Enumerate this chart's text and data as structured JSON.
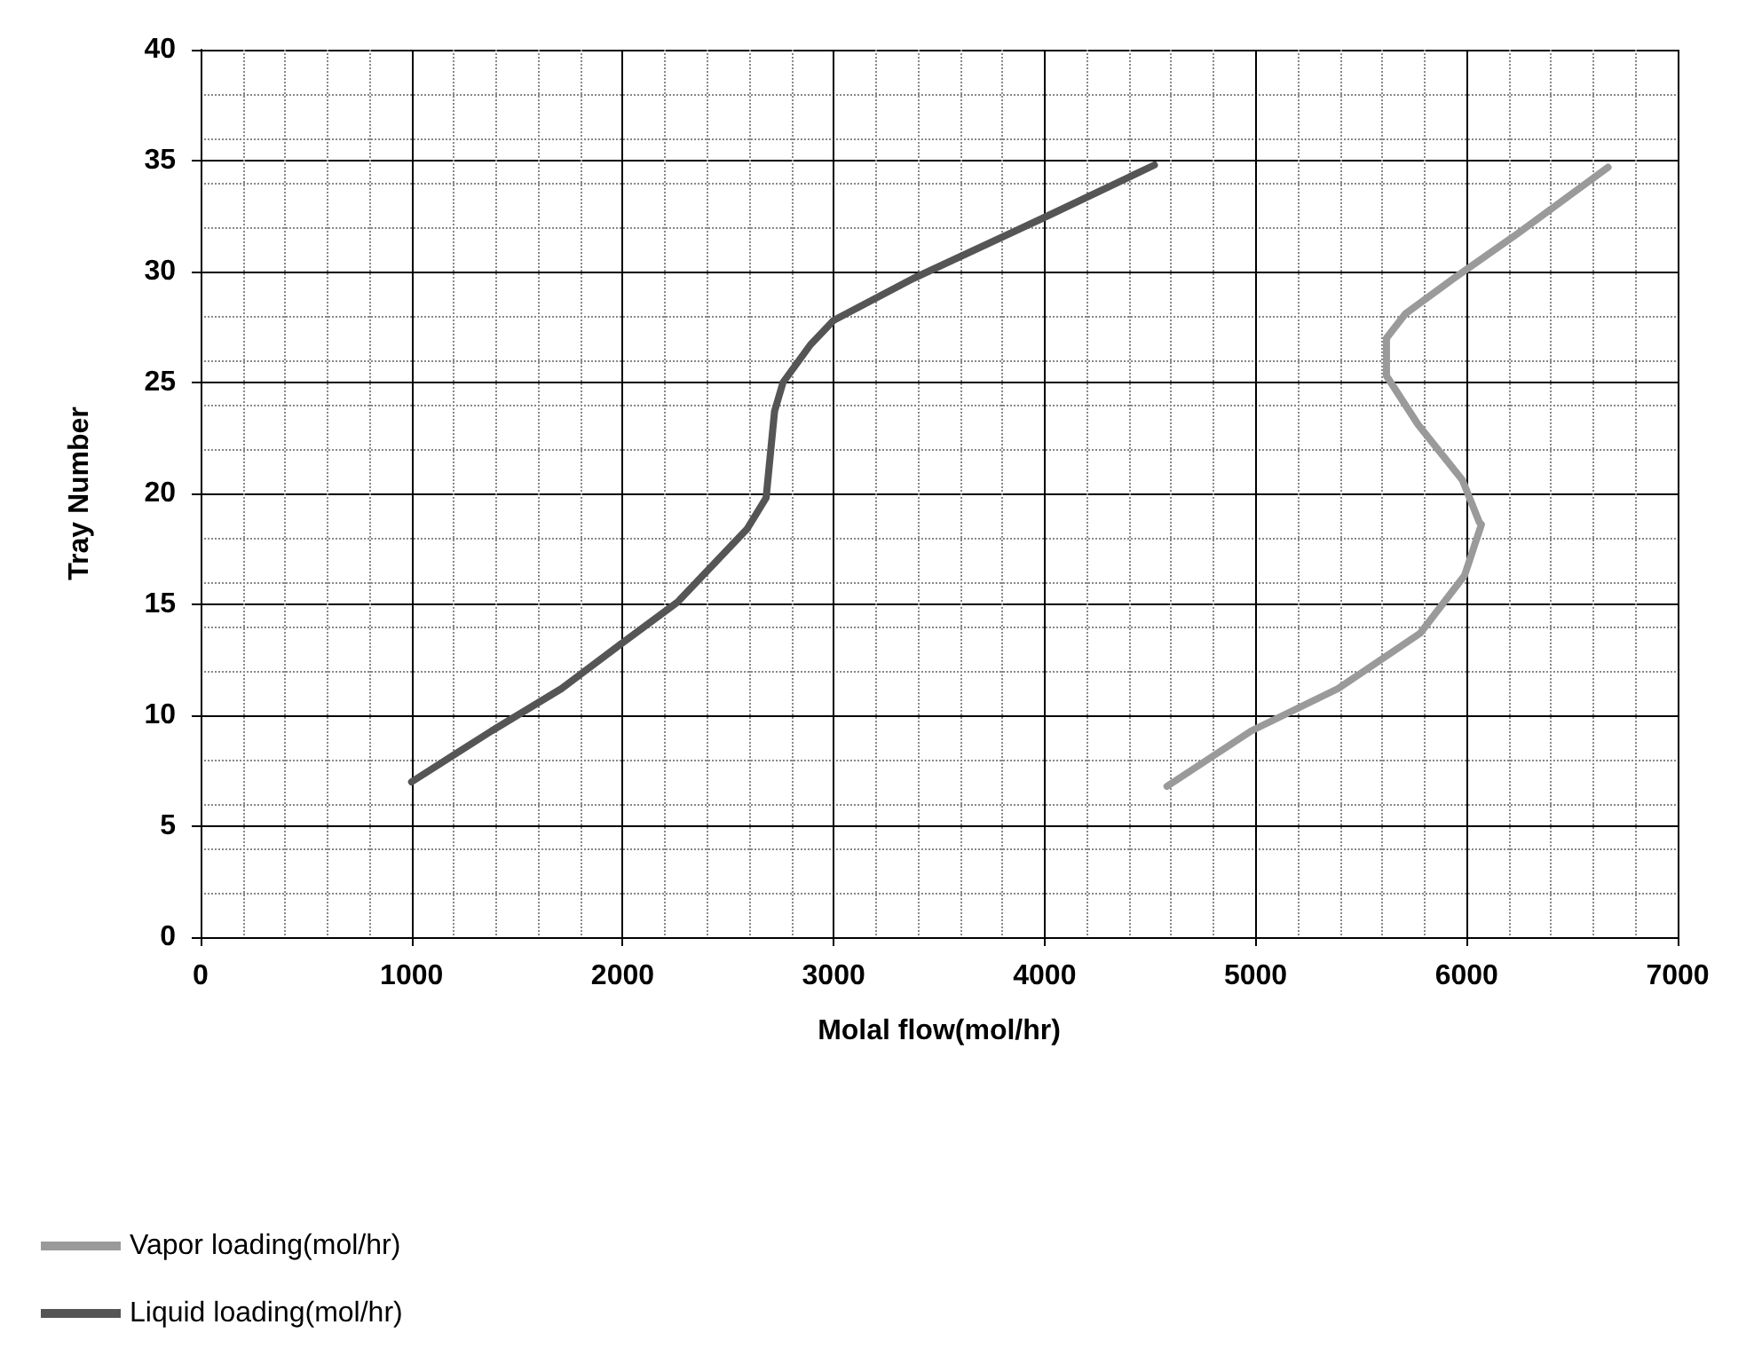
{
  "chart_data": {
    "type": "line",
    "xlabel": "Molal flow(mol/hr)",
    "ylabel": "Tray Number",
    "xlim": [
      0,
      7000
    ],
    "xticks": [
      0,
      1000,
      2000,
      3000,
      4000,
      5000,
      6000,
      7000
    ],
    "ylim": [
      0,
      40
    ],
    "yticks": [
      0,
      5,
      10,
      15,
      20,
      25,
      30,
      35,
      40
    ],
    "grid": true,
    "legend": "bottom left",
    "marker": "none",
    "line_style": "solid",
    "series": [
      {
        "name": "Vapor loading(mol/hr)",
        "color": "#9a9a9a",
        "x": [
          4580,
          4980,
          5390,
          5780,
          5990,
          6070,
          6060,
          5980,
          5770,
          5620,
          5620,
          5710,
          5940,
          6240,
          6670
        ],
        "values": [
          6.8,
          9.3,
          11.2,
          13.7,
          16.3,
          18.6,
          18.7,
          20.6,
          23.1,
          25.3,
          27,
          28.1,
          29.7,
          31.7,
          34.7
        ]
      },
      {
        "name": "Liquid loading(mol/hr)",
        "color": "#555555",
        "x": [
          1000,
          1380,
          1710,
          1990,
          2260,
          2590,
          2680,
          2720,
          2760,
          2890,
          3000,
          3380,
          3990,
          4520
        ],
        "values": [
          7,
          9.3,
          11.2,
          13.2,
          15.1,
          18.4,
          19.8,
          23.7,
          25,
          26.7,
          27.8,
          29.7,
          32.4,
          34.8
        ]
      }
    ]
  }
}
